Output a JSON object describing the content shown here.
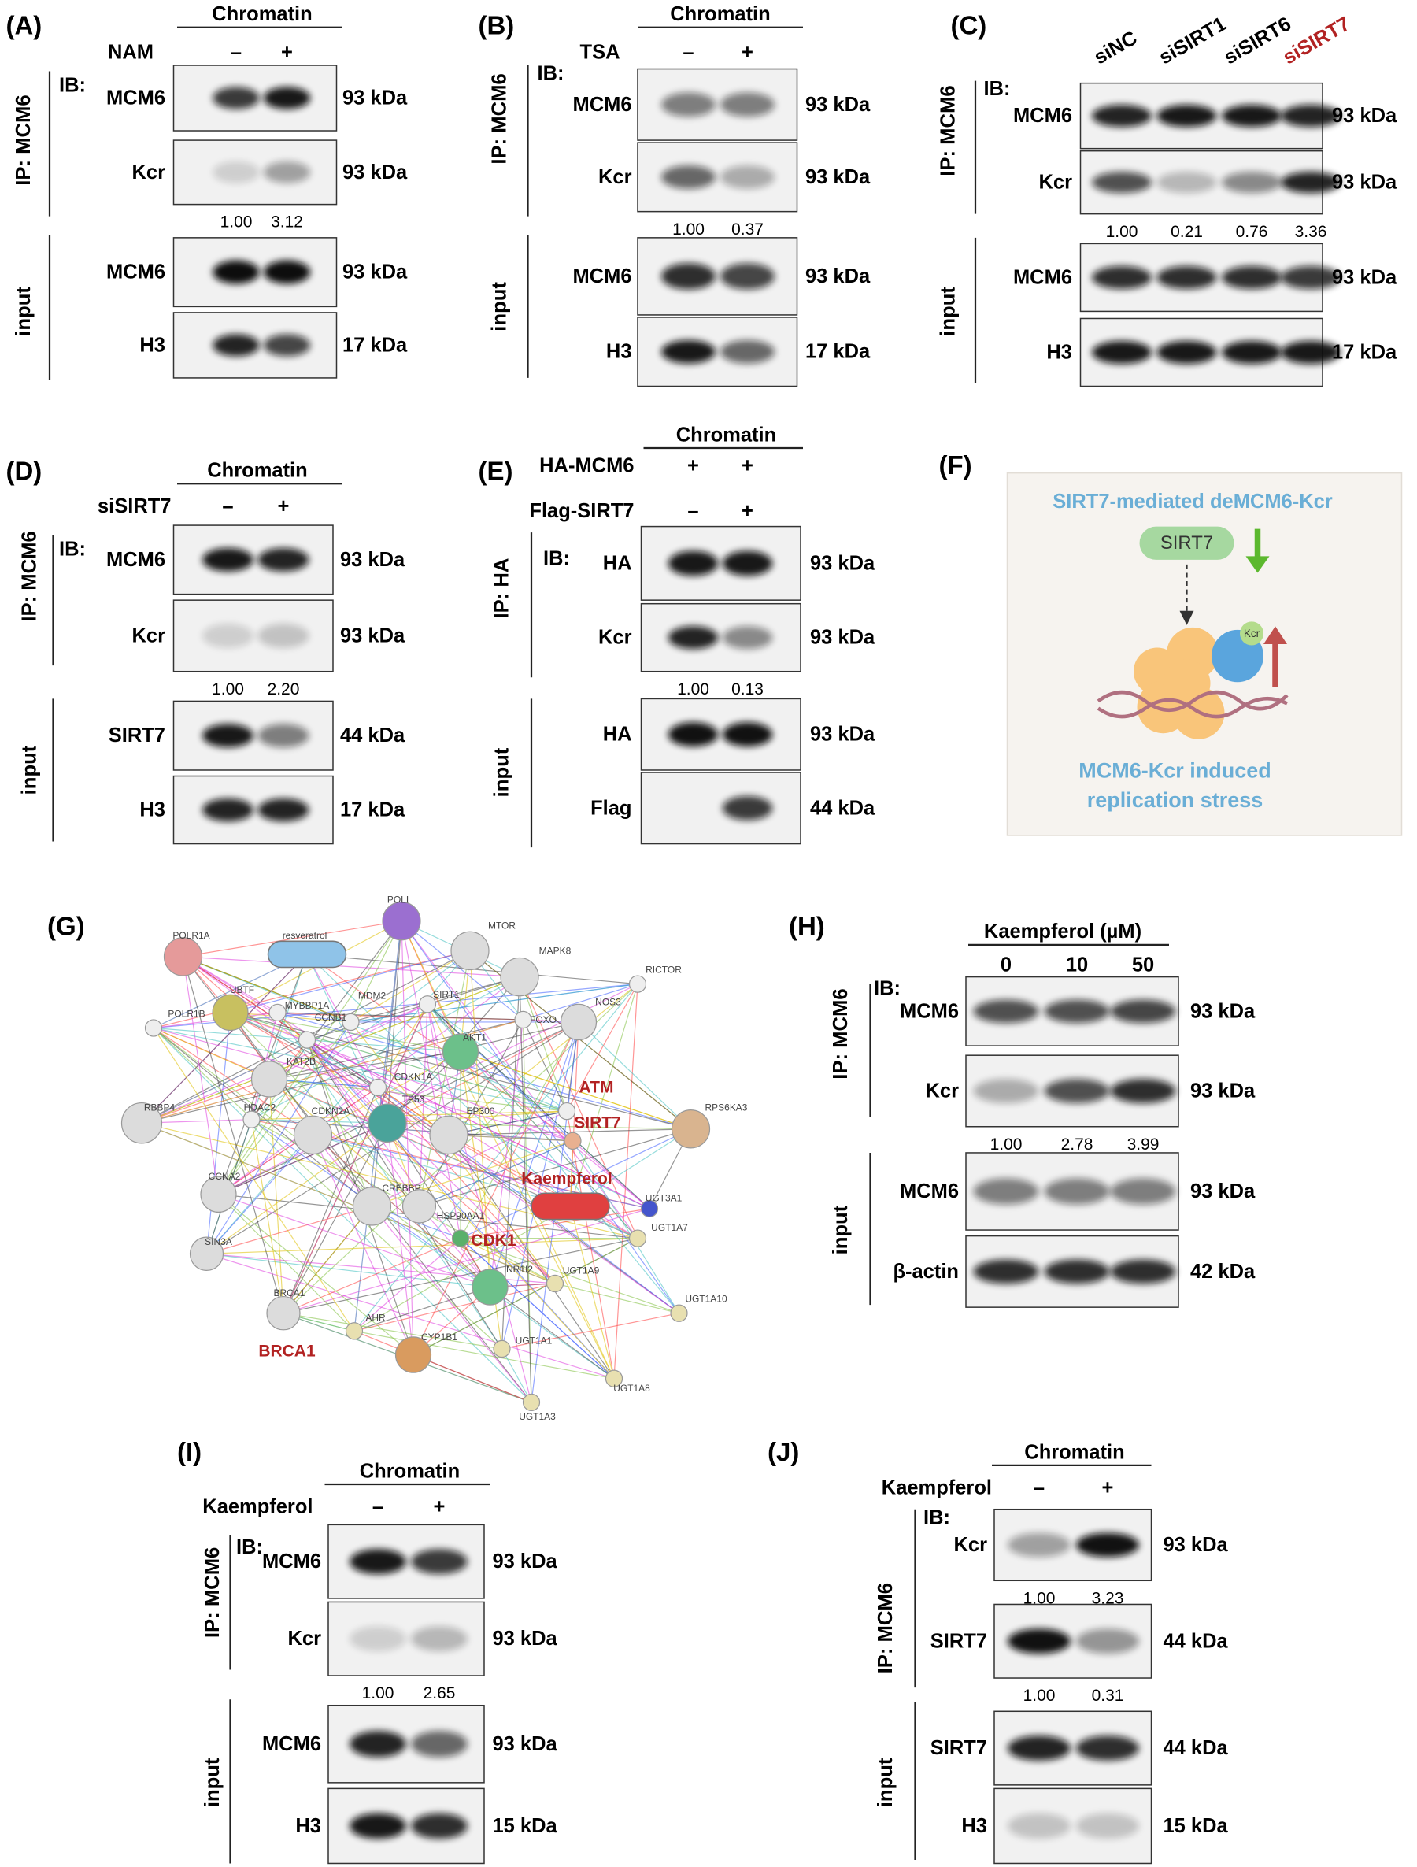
{
  "panels": [
    {
      "label": "(A)",
      "header": "Chromatin",
      "conditions": [
        {
          "name": "NAM",
          "marks": [
            "–",
            "+"
          ]
        }
      ],
      "ip": {
        "label": "IP: MCM6",
        "ib": "IB:",
        "blots": [
          {
            "protein": "MCM6",
            "size": "93 kDa"
          },
          {
            "protein": "Kcr",
            "size": "93 kDa",
            "quant": [
              "1.00",
              "3.12"
            ]
          }
        ]
      },
      "input": {
        "label": "input",
        "blots": [
          {
            "protein": "MCM6",
            "size": "93 kDa"
          },
          {
            "protein": "H3",
            "size": "17 kDa"
          }
        ]
      }
    },
    {
      "label": "(B)",
      "header": "Chromatin",
      "conditions": [
        {
          "name": "TSA",
          "marks": [
            "–",
            "+"
          ]
        }
      ],
      "ip": {
        "label": "IP: MCM6",
        "ib": "IB:",
        "blots": [
          {
            "protein": "MCM6",
            "size": "93 kDa"
          },
          {
            "protein": "Kcr",
            "size": "93 kDa",
            "quant": [
              "1.00",
              "0.37"
            ]
          }
        ]
      },
      "input": {
        "label": "input",
        "blots": [
          {
            "protein": "MCM6",
            "size": "93 kDa"
          },
          {
            "protein": "H3",
            "size": "17 kDa"
          }
        ]
      }
    },
    {
      "label": "(C)",
      "lanes": [
        "siNC",
        "siSIRT1",
        "siSIRT6",
        "siSIRT7"
      ],
      "ip": {
        "label": "IP: MCM6",
        "ib": "IB:",
        "blots": [
          {
            "protein": "MCM6",
            "size": "93 kDa"
          },
          {
            "protein": "Kcr",
            "size": "93 kDa",
            "quant": [
              "1.00",
              "0.21",
              "0.76",
              "3.36"
            ]
          }
        ]
      },
      "input": {
        "label": "input",
        "blots": [
          {
            "protein": "MCM6",
            "size": "93 kDa"
          },
          {
            "protein": "H3",
            "size": "17 kDa"
          }
        ]
      }
    },
    {
      "label": "(D)",
      "header": "Chromatin",
      "conditions": [
        {
          "name": "siSIRT7",
          "marks": [
            "–",
            "+"
          ]
        }
      ],
      "ip": {
        "label": "IP: MCM6",
        "ib": "IB:",
        "blots": [
          {
            "protein": "MCM6",
            "size": "93 kDa"
          },
          {
            "protein": "Kcr",
            "size": "93 kDa",
            "quant": [
              "1.00",
              "2.20"
            ]
          }
        ]
      },
      "input": {
        "label": "input",
        "blots": [
          {
            "protein": "SIRT7",
            "size": "44 kDa"
          },
          {
            "protein": "H3",
            "size": "17 kDa"
          }
        ]
      }
    },
    {
      "label": "(E)",
      "header": "Chromatin",
      "conditions": [
        {
          "name": "HA-MCM6",
          "marks": [
            "+",
            "+"
          ]
        },
        {
          "name": "Flag-SIRT7",
          "marks": [
            "–",
            "+"
          ]
        }
      ],
      "ip": {
        "label": "IP: HA",
        "ib": "IB:",
        "blots": [
          {
            "protein": "HA",
            "size": "93 kDa"
          },
          {
            "protein": "Kcr",
            "size": "93 kDa",
            "quant": [
              "1.00",
              "0.13"
            ]
          }
        ]
      },
      "input": {
        "label": "input",
        "blots": [
          {
            "protein": "HA",
            "size": "93 kDa"
          },
          {
            "protein": "Flag",
            "size": "44 kDa"
          }
        ]
      }
    },
    {
      "label": "(H)",
      "header": "Kaempferol (µM)",
      "lanes": [
        "0",
        "10",
        "50"
      ],
      "ip": {
        "label": "IP: MCM6",
        "ib": "IB:",
        "blots": [
          {
            "protein": "MCM6",
            "size": "93 kDa"
          },
          {
            "protein": "Kcr",
            "size": "93 kDa",
            "quant": [
              "1.00",
              "2.78",
              "3.99"
            ]
          }
        ]
      },
      "input": {
        "label": "input",
        "blots": [
          {
            "protein": "MCM6",
            "size": "93 kDa"
          },
          {
            "protein": "β-actin",
            "size": "42 kDa"
          }
        ]
      }
    },
    {
      "label": "(I)",
      "header": "Chromatin",
      "conditions": [
        {
          "name": "Kaempferol",
          "marks": [
            "–",
            "+"
          ]
        }
      ],
      "ip": {
        "label": "IP: MCM6",
        "ib": "IB:",
        "blots": [
          {
            "protein": "MCM6",
            "size": "93 kDa"
          },
          {
            "protein": "Kcr",
            "size": "93 kDa",
            "quant": [
              "1.00",
              "2.65"
            ]
          }
        ]
      },
      "input": {
        "label": "input",
        "blots": [
          {
            "protein": "MCM6",
            "size": "93 kDa"
          },
          {
            "protein": "H3",
            "size": "15 kDa"
          }
        ]
      }
    },
    {
      "label": "(J)",
      "header": "Chromatin",
      "conditions": [
        {
          "name": "Kaempferol",
          "marks": [
            "–",
            "+"
          ]
        }
      ],
      "ip": {
        "label": "IP: MCM6",
        "ib": "IB:",
        "blots": [
          {
            "protein": "Kcr",
            "size": "93 kDa",
            "quant": [
              "1.00",
              "3.23"
            ]
          },
          {
            "protein": "SIRT7",
            "size": "44 kDa",
            "quant": [
              "1.00",
              "0.31"
            ]
          }
        ]
      },
      "input": {
        "label": "input",
        "blots": [
          {
            "protein": "SIRT7",
            "size": "44 kDa"
          },
          {
            "protein": "H3",
            "size": "15 kDa"
          }
        ]
      }
    }
  ],
  "schematic": {
    "label": "(F)",
    "title": "SIRT7-mediated deMCM6-Kcr",
    "node": "SIRT7",
    "badge": "Kcr",
    "caption": [
      "MCM6-Kcr induced",
      "replication stress"
    ]
  },
  "network": {
    "label": "(G)",
    "nodes": [
      "POLI",
      "resveratrol",
      "MTOR",
      "POLR1A",
      "MAPK8",
      "RICTOR",
      "UBTF",
      "POLR1B",
      "MYBBP1A",
      "MDM2",
      "SIRT1",
      "FOXO",
      "NOS3",
      "CCNB1",
      "AKT1",
      "KAT2B",
      "CDKN1A",
      "RBBP4",
      "HDAC2",
      "CDKN2A",
      "TP53",
      "EP300",
      "RPS6KA3",
      "CCNA2",
      "CREBBP",
      "HSP90AA1",
      "UGT3A1",
      "UGT1A7",
      "SIN3A",
      "NR1I2",
      "UGT1A9",
      "BRCA1",
      "UGT1A10",
      "AHR",
      "CYP1B1",
      "UGT1A1",
      "UGT1A8",
      "UGT1A3"
    ],
    "highlighted_nodes": [
      "ATM",
      "SIRT7",
      "Kaempferol",
      "CDK1",
      "BRCA1"
    ]
  }
}
